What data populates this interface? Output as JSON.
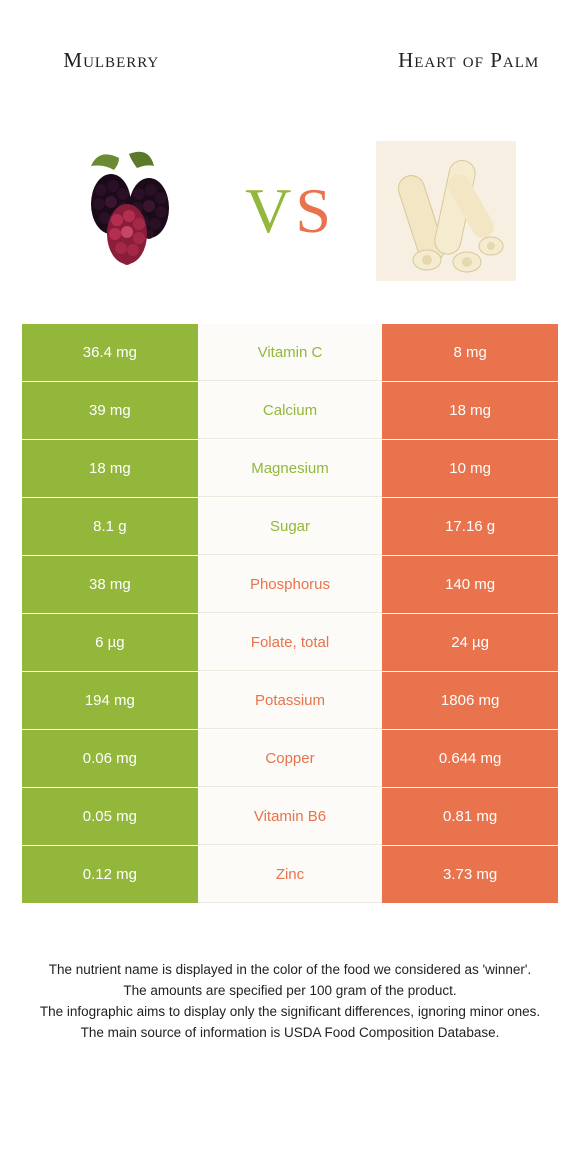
{
  "header": {
    "left_title": "Mulberry",
    "right_title": "Heart of Palm"
  },
  "vs": {
    "v": "V",
    "s": "S"
  },
  "colors": {
    "left": "#93b73b",
    "right": "#e8734c",
    "mid_bg": "#fcfbf7",
    "mid_border": "#eceadf",
    "vs_v": "#93b73b",
    "vs_s": "#e8734c"
  },
  "rows": [
    {
      "left": "36.4 mg",
      "label": "Vitamin C",
      "right": "8 mg",
      "winner": "left"
    },
    {
      "left": "39 mg",
      "label": "Calcium",
      "right": "18 mg",
      "winner": "left"
    },
    {
      "left": "18 mg",
      "label": "Magnesium",
      "right": "10 mg",
      "winner": "left"
    },
    {
      "left": "8.1 g",
      "label": "Sugar",
      "right": "17.16 g",
      "winner": "left"
    },
    {
      "left": "38 mg",
      "label": "Phosphorus",
      "right": "140 mg",
      "winner": "right"
    },
    {
      "left": "6 µg",
      "label": "Folate, total",
      "right": "24 µg",
      "winner": "right"
    },
    {
      "left": "194 mg",
      "label": "Potassium",
      "right": "1806 mg",
      "winner": "right"
    },
    {
      "left": "0.06 mg",
      "label": "Copper",
      "right": "0.644 mg",
      "winner": "right"
    },
    {
      "left": "0.05 mg",
      "label": "Vitamin B6",
      "right": "0.81 mg",
      "winner": "right"
    },
    {
      "left": "0.12 mg",
      "label": "Zinc",
      "right": "3.73 mg",
      "winner": "right"
    }
  ],
  "footer": {
    "line1": "The nutrient name is displayed in the color of the food we considered as 'winner'.",
    "line2": "The amounts are specified per 100 gram of the product.",
    "line3": "The infographic aims to display only the significant differences, ignoring minor ones.",
    "line4": "The main source of information is USDA Food Composition Database."
  }
}
